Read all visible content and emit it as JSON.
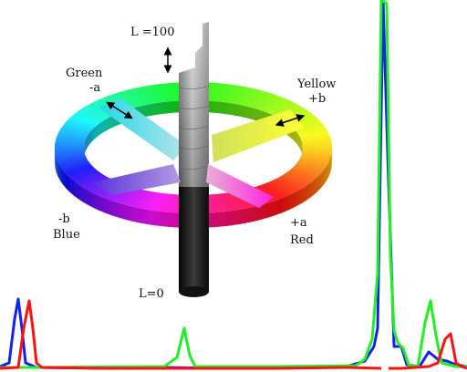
{
  "labels": {
    "l_top": "L =100",
    "l_bottom": "L=0",
    "green_name": "Green",
    "green_axis": "-a",
    "yellow_name": "Yellow",
    "yellow_axis": "+b",
    "blue_axis": "-b",
    "blue_name": "Blue",
    "red_axis": "+a",
    "red_name": "Red"
  },
  "colors": {
    "green": "#22ee22",
    "red": "#ff1111",
    "blue": "#1122ee"
  }
}
